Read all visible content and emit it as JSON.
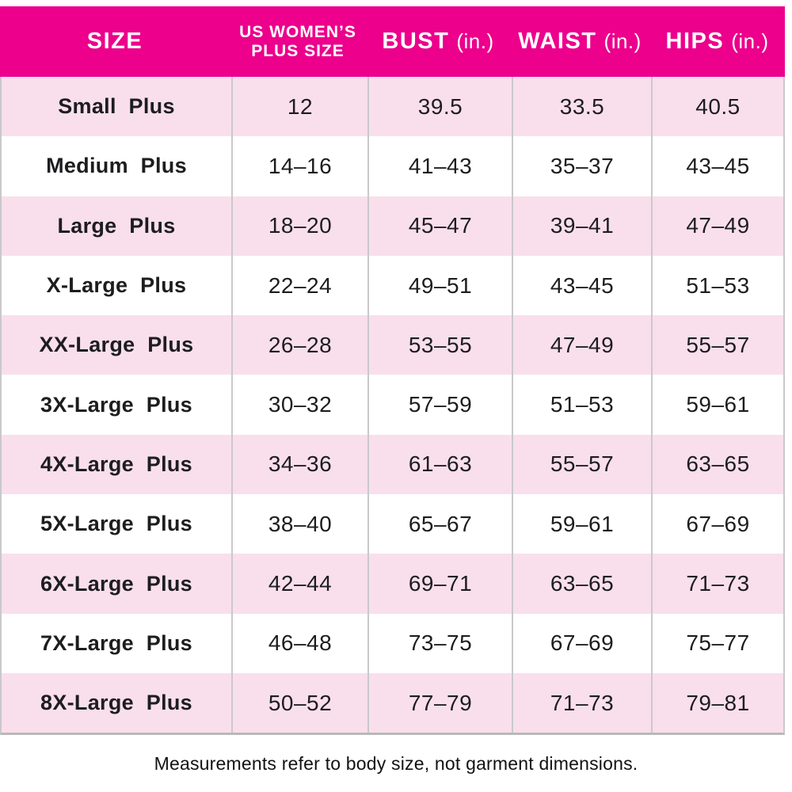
{
  "colors": {
    "header_bg": "#EC008C",
    "header_text": "#FFFFFF",
    "row_bg": "#FFFFFF",
    "row_alt_bg": "#F9DFEB",
    "grid_line": "#C9C9C9",
    "grid_line_dark": "#B9B9B9",
    "body_text": "#1D1D1F"
  },
  "chart_data": {
    "type": "table",
    "title": "",
    "columns": [
      "SIZE",
      "US WOMEN’S PLUS SIZE",
      "BUST (in.)",
      "WAIST (in.)",
      "HIPS (in.)"
    ],
    "rows": [
      [
        "Small Plus",
        "12",
        "39.5",
        "33.5",
        "40.5"
      ],
      [
        "Medium Plus",
        "14–16",
        "41–43",
        "35–37",
        "43–45"
      ],
      [
        "Large Plus",
        "18–20",
        "45–47",
        "39–41",
        "47–49"
      ],
      [
        "X-Large Plus",
        "22–24",
        "49–51",
        "43–45",
        "51–53"
      ],
      [
        "XX-Large Plus",
        "26–28",
        "53–55",
        "47–49",
        "55–57"
      ],
      [
        "3X-Large Plus",
        "30–32",
        "57–59",
        "51–53",
        "59–61"
      ],
      [
        "4X-Large Plus",
        "34–36",
        "61–63",
        "55–57",
        "63–65"
      ],
      [
        "5X-Large Plus",
        "38–40",
        "65–67",
        "59–61",
        "67–69"
      ],
      [
        "6X-Large Plus",
        "42–44",
        "69–71",
        "63–65",
        "71–73"
      ],
      [
        "7X-Large Plus",
        "46–48",
        "73–75",
        "67–69",
        "75–77"
      ],
      [
        "8X-Large Plus",
        "50–52",
        "77–79",
        "71–73",
        "79–81"
      ]
    ],
    "footnote": "Measurements refer to body size, not garment dimensions.",
    "layout_hints": {
      "striped_rows": true,
      "stripe_pattern": "odd rows white, even rows light pink",
      "header_style": "magenta band with white uppercase text"
    }
  },
  "table": {
    "headers": {
      "size": {
        "label": "SIZE",
        "unit": ""
      },
      "us_plus": {
        "label": "US WOMEN’S PLUS SIZE",
        "unit": ""
      },
      "bust": {
        "label": "BUST",
        "unit": "(in.)"
      },
      "waist": {
        "label": "WAIST",
        "unit": "(in.)"
      },
      "hips": {
        "label": "HIPS",
        "unit": "(in.)"
      }
    },
    "rows": [
      {
        "size": "Small Plus",
        "us_plus": "12",
        "bust": "39.5",
        "waist": "33.5",
        "hips": "40.5"
      },
      {
        "size": "Medium Plus",
        "us_plus": "14–16",
        "bust": "41–43",
        "waist": "35–37",
        "hips": "43–45"
      },
      {
        "size": "Large Plus",
        "us_plus": "18–20",
        "bust": "45–47",
        "waist": "39–41",
        "hips": "47–49"
      },
      {
        "size": "X-Large Plus",
        "us_plus": "22–24",
        "bust": "49–51",
        "waist": "43–45",
        "hips": "51–53"
      },
      {
        "size": "XX-Large Plus",
        "us_plus": "26–28",
        "bust": "53–55",
        "waist": "47–49",
        "hips": "55–57"
      },
      {
        "size": "3X-Large Plus",
        "us_plus": "30–32",
        "bust": "57–59",
        "waist": "51–53",
        "hips": "59–61"
      },
      {
        "size": "4X-Large Plus",
        "us_plus": "34–36",
        "bust": "61–63",
        "waist": "55–57",
        "hips": "63–65"
      },
      {
        "size": "5X-Large Plus",
        "us_plus": "38–40",
        "bust": "65–67",
        "waist": "59–61",
        "hips": "67–69"
      },
      {
        "size": "6X-Large Plus",
        "us_plus": "42–44",
        "bust": "69–71",
        "waist": "63–65",
        "hips": "71–73"
      },
      {
        "size": "7X-Large Plus",
        "us_plus": "46–48",
        "bust": "73–75",
        "waist": "67–69",
        "hips": "75–77"
      },
      {
        "size": "8X-Large Plus",
        "us_plus": "50–52",
        "bust": "77–79",
        "waist": "71–73",
        "hips": "79–81"
      }
    ]
  },
  "footer": {
    "note": "Measurements refer to body size, not garment dimensions."
  }
}
